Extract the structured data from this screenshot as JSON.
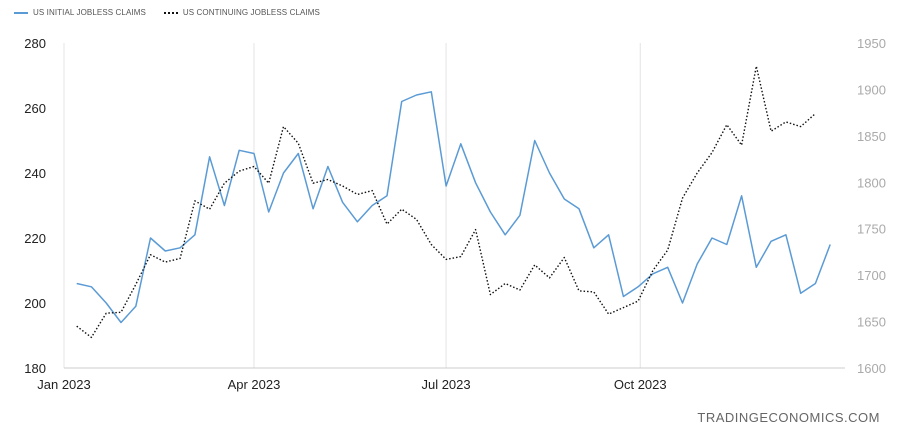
{
  "chart_data": {
    "type": "line",
    "title": "",
    "legend_position": "top-left",
    "grid": "vertical",
    "x_dates": [
      "2023-01-07",
      "2023-01-14",
      "2023-01-21",
      "2023-01-28",
      "2023-02-04",
      "2023-02-11",
      "2023-02-18",
      "2023-02-25",
      "2023-03-04",
      "2023-03-11",
      "2023-03-18",
      "2023-03-25",
      "2023-04-01",
      "2023-04-08",
      "2023-04-15",
      "2023-04-22",
      "2023-04-29",
      "2023-05-06",
      "2023-05-13",
      "2023-05-20",
      "2023-05-27",
      "2023-06-03",
      "2023-06-10",
      "2023-06-17",
      "2023-06-24",
      "2023-07-01",
      "2023-07-08",
      "2023-07-15",
      "2023-07-22",
      "2023-07-29",
      "2023-08-05",
      "2023-08-12",
      "2023-08-19",
      "2023-08-26",
      "2023-09-02",
      "2023-09-09",
      "2023-09-16",
      "2023-09-23",
      "2023-09-30",
      "2023-10-07",
      "2023-10-14",
      "2023-10-21",
      "2023-10-28",
      "2023-11-04",
      "2023-11-11",
      "2023-11-18",
      "2023-11-25",
      "2023-12-02",
      "2023-12-09",
      "2023-12-16",
      "2023-12-23",
      "2023-12-30"
    ],
    "x_ticks": [
      "Jan 2023",
      "Apr 2023",
      "Jul 2023",
      "Oct 2023"
    ],
    "x_tick_dates": [
      "2023-01-01",
      "2023-04-01",
      "2023-07-01",
      "2023-10-01"
    ],
    "x_range": [
      "2023-01-01",
      "2024-01-06"
    ],
    "y_left_ticks": [
      "180",
      "200",
      "220",
      "240",
      "260",
      "280"
    ],
    "ylim_left": [
      180,
      280
    ],
    "y_right_ticks": [
      "1600",
      "1650",
      "1700",
      "1750",
      "1800",
      "1850",
      "1900",
      "1950"
    ],
    "ylim_right": [
      1600,
      1950
    ],
    "series": [
      {
        "name": "US INITIAL JOBLESS CLAIMS",
        "axis": "left",
        "color": "#5b9bd5",
        "style": "solid",
        "values": [
          206,
          205,
          200,
          194,
          199,
          220,
          216,
          217,
          221,
          245,
          230,
          247,
          246,
          228,
          240,
          246,
          229,
          242,
          231,
          225,
          230,
          233,
          262,
          264,
          265,
          236,
          249,
          237,
          228,
          221,
          227,
          250,
          240,
          232,
          229,
          217,
          221,
          202,
          205,
          209,
          211,
          200,
          212,
          220,
          218,
          233,
          211,
          219,
          221,
          203,
          206,
          218
        ]
      },
      {
        "name": "US CONTINUING JOBLESS CLAIMS",
        "axis": "right",
        "color": "#111111",
        "style": "dotted",
        "values": [
          1645,
          1633,
          1659,
          1660,
          1690,
          1722,
          1714,
          1718,
          1780,
          1771,
          1799,
          1812,
          1817,
          1799,
          1860,
          1842,
          1799,
          1803,
          1796,
          1787,
          1791,
          1755,
          1771,
          1760,
          1733,
          1717,
          1720,
          1749,
          1679,
          1691,
          1684,
          1711,
          1697,
          1719,
          1683,
          1682,
          1658,
          1665,
          1672,
          1705,
          1727,
          1783,
          1810,
          1832,
          1862,
          1840,
          1925,
          1855,
          1865,
          1860,
          1874
        ]
      }
    ]
  },
  "legend": {
    "initial_label": "US INITIAL JOBLESS CLAIMS",
    "continuing_label": "US CONTINUING JOBLESS CLAIMS"
  },
  "watermark": "TRADINGECONOMICS.COM"
}
